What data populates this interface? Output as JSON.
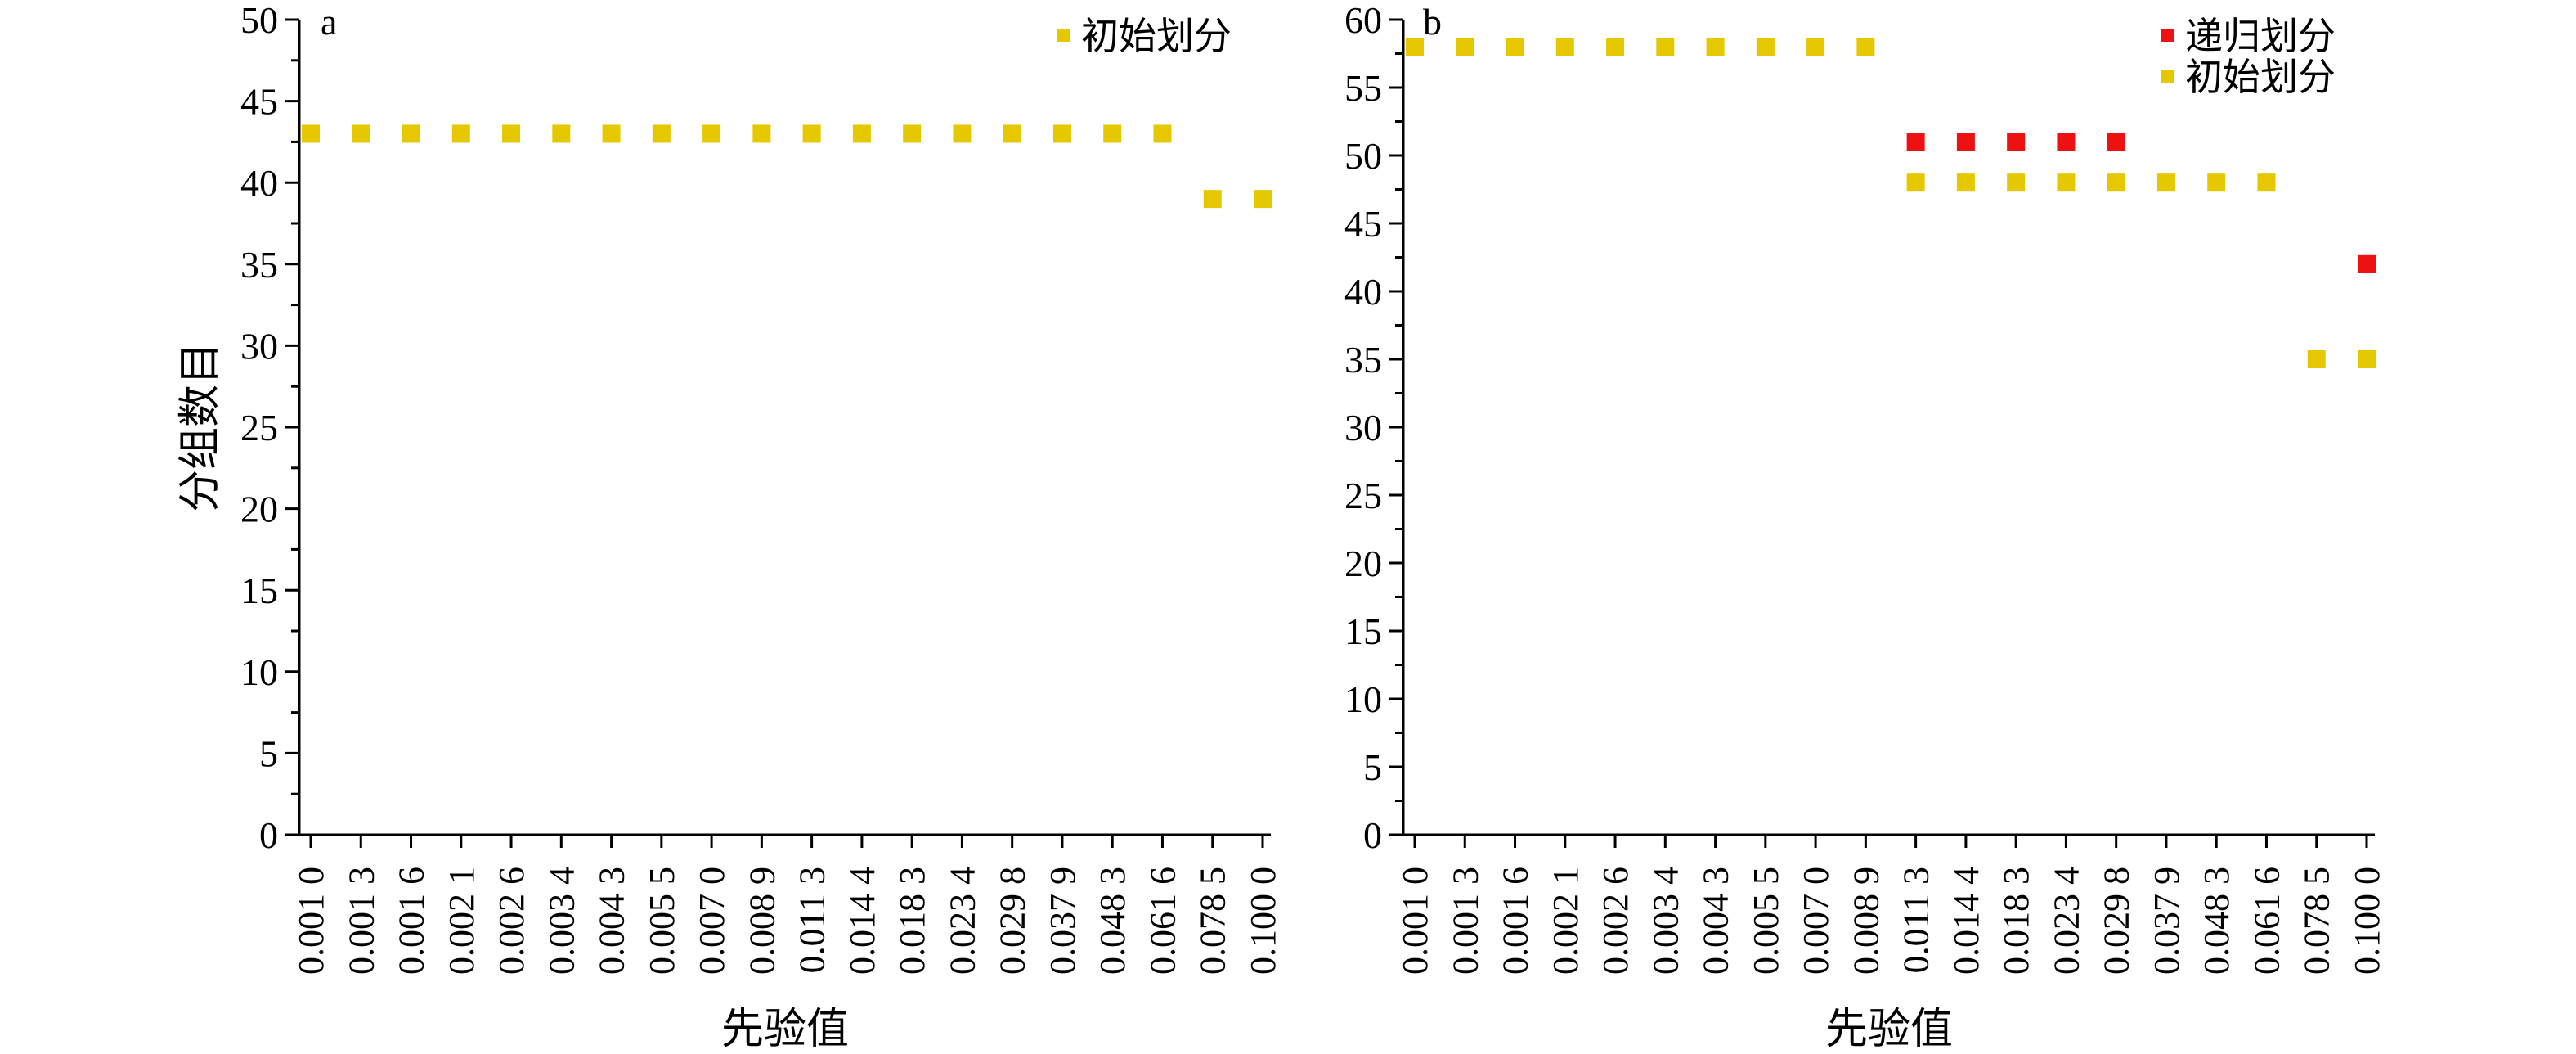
{
  "chart_data": [
    {
      "type": "scatter",
      "panel_label": "a",
      "title": "",
      "xlabel": "先验值",
      "ylabel": "分组数目",
      "ylim": [
        0,
        50
      ],
      "yticks": [
        0,
        5,
        10,
        15,
        20,
        25,
        30,
        35,
        40,
        45,
        50
      ],
      "categories": [
        "0.001 0",
        "0.001 3",
        "0.001 6",
        "0.002 1",
        "0.002 6",
        "0.003 4",
        "0.004 3",
        "0.005 5",
        "0.007 0",
        "0.008 9",
        "0.011 3",
        "0.014 4",
        "0.018 3",
        "0.023 4",
        "0.029 8",
        "0.037 9",
        "0.048 3",
        "0.061 6",
        "0.078 5",
        "0.100 0"
      ],
      "legend_position": "top-right",
      "series": [
        {
          "name": "初始划分",
          "color": "#e6c800",
          "points": [
            {
              "x": "0.001 0",
              "y": 43
            },
            {
              "x": "0.001 3",
              "y": 43
            },
            {
              "x": "0.001 6",
              "y": 43
            },
            {
              "x": "0.002 1",
              "y": 43
            },
            {
              "x": "0.002 6",
              "y": 43
            },
            {
              "x": "0.003 4",
              "y": 43
            },
            {
              "x": "0.004 3",
              "y": 43
            },
            {
              "x": "0.005 5",
              "y": 43
            },
            {
              "x": "0.007 0",
              "y": 43
            },
            {
              "x": "0.008 9",
              "y": 43
            },
            {
              "x": "0.011 3",
              "y": 43
            },
            {
              "x": "0.014 4",
              "y": 43
            },
            {
              "x": "0.018 3",
              "y": 43
            },
            {
              "x": "0.023 4",
              "y": 43
            },
            {
              "x": "0.029 8",
              "y": 43
            },
            {
              "x": "0.037 9",
              "y": 43
            },
            {
              "x": "0.048 3",
              "y": 43
            },
            {
              "x": "0.061 6",
              "y": 43
            },
            {
              "x": "0.078 5",
              "y": 39
            },
            {
              "x": "0.100 0",
              "y": 39
            }
          ]
        }
      ]
    },
    {
      "type": "scatter",
      "panel_label": "b",
      "title": "",
      "xlabel": "先验值",
      "ylabel": "",
      "ylim": [
        0,
        60
      ],
      "yticks": [
        0,
        5,
        10,
        15,
        20,
        25,
        30,
        35,
        40,
        45,
        50,
        55,
        60
      ],
      "categories": [
        "0.001 0",
        "0.001 3",
        "0.001 6",
        "0.002 1",
        "0.002 6",
        "0.003 4",
        "0.004 3",
        "0.005 5",
        "0.007 0",
        "0.008 9",
        "0.011 3",
        "0.014 4",
        "0.018 3",
        "0.023 4",
        "0.029 8",
        "0.037 9",
        "0.048 3",
        "0.061 6",
        "0.078 5",
        "0.100 0"
      ],
      "legend_position": "top-right",
      "series": [
        {
          "name": "递归划分",
          "color": "#ee1111",
          "points": [
            {
              "x": "0.011 3",
              "y": 51
            },
            {
              "x": "0.014 4",
              "y": 51
            },
            {
              "x": "0.018 3",
              "y": 51
            },
            {
              "x": "0.023 4",
              "y": 51
            },
            {
              "x": "0.029 8",
              "y": 51
            },
            {
              "x": "0.100 0",
              "y": 42
            }
          ]
        },
        {
          "name": "初始划分",
          "color": "#e6c800",
          "points": [
            {
              "x": "0.001 0",
              "y": 58
            },
            {
              "x": "0.001 3",
              "y": 58
            },
            {
              "x": "0.001 6",
              "y": 58
            },
            {
              "x": "0.002 1",
              "y": 58
            },
            {
              "x": "0.002 6",
              "y": 58
            },
            {
              "x": "0.003 4",
              "y": 58
            },
            {
              "x": "0.004 3",
              "y": 58
            },
            {
              "x": "0.005 5",
              "y": 58
            },
            {
              "x": "0.007 0",
              "y": 58
            },
            {
              "x": "0.008 9",
              "y": 58
            },
            {
              "x": "0.011 3",
              "y": 48
            },
            {
              "x": "0.014 4",
              "y": 48
            },
            {
              "x": "0.018 3",
              "y": 48
            },
            {
              "x": "0.023 4",
              "y": 48
            },
            {
              "x": "0.029 8",
              "y": 48
            },
            {
              "x": "0.037 9",
              "y": 48
            },
            {
              "x": "0.048 3",
              "y": 48
            },
            {
              "x": "0.061 6",
              "y": 48
            },
            {
              "x": "0.078 5",
              "y": 35
            },
            {
              "x": "0.100 0",
              "y": 35
            }
          ]
        }
      ]
    }
  ]
}
